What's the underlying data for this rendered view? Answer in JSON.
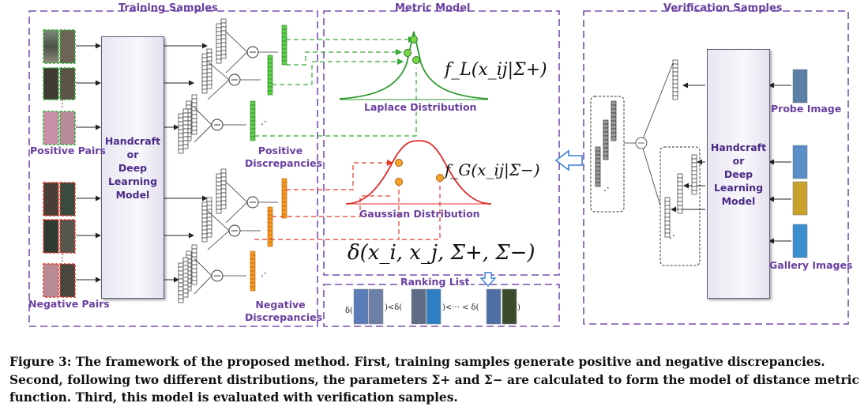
{
  "sections": {
    "training": "Training Samples",
    "metric": "Metric Model",
    "verification": "Verification Samples"
  },
  "training": {
    "positive_pairs": "Positive Pairs",
    "negative_pairs": "Negative Pairs",
    "model_label": "Handcraft\nor\nDeep\nLearning\nModel",
    "positive_discrepancies": "Positive\nDiscrepancies",
    "negative_discrepancies": "Negative\nDiscrepancies"
  },
  "metric": {
    "laplace_label": "Laplace Distribution",
    "gaussian_label": "Gaussian Distribution",
    "laplace_formula": "f_L(x_ij|Σ+)",
    "gaussian_formula": "f_G(x_ij|Σ−)",
    "distance_formula": "δ(x_i, x_j, Σ+, Σ−)",
    "ranking_list": "Ranking List"
  },
  "verification": {
    "probe_image": "Probe Image",
    "gallery_images": "Gallery Images",
    "model_label": "Handcraft\nor\nDeep\nLearning\nModel"
  },
  "caption": "Figure 3: The framework of the proposed method. First, training samples generate positive and negative discrepancies. Second, following two different distributions, the parameters Σ+ and Σ− are calculated to form the model of distance metric function. Third, this model is evaluated with verification samples.",
  "colors": {
    "frame": "#7a4fb0",
    "positive": "#33aa33",
    "negative": "#e53b2b",
    "arrow_blue": "#3a7fd6"
  }
}
